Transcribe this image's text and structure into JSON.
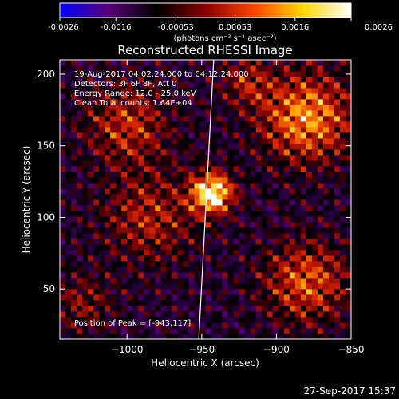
{
  "chart_data": {
    "type": "heatmap",
    "title": "Reconstructed RHESSI Image",
    "colorbar": {
      "ticks": [
        "-0.0026",
        "-0.0016",
        "-0.00053",
        "0.00053",
        "0.0016",
        "0.0026"
      ],
      "range": [
        -0.0026,
        0.0026
      ],
      "unit_label": "(photons cm⁻² s⁻¹ asec⁻²)",
      "colors": [
        "#0000ff",
        "#5a007a",
        "#000000",
        "#8b0000",
        "#ff4500",
        "#ffd700",
        "#ffffff"
      ]
    },
    "xlabel": "Heliocentric X (arcsec)",
    "ylabel": "Heliocentric Y (arcsec)",
    "xlim": [
      -1045,
      -850
    ],
    "ylim": [
      15,
      210
    ],
    "xticks": [
      -1000,
      -950,
      -900,
      -850
    ],
    "yticks": [
      50,
      100,
      150,
      200
    ],
    "annotations": [
      "19-Aug-2017 04:02:24.000 to 04:12:24.000",
      "Detectors: 3F 6F 8F, Att 0",
      "Energy Range: 12.0 - 25.0 keV",
      "Clean    Total counts: 1.64E+04"
    ],
    "peak_label": "Position of Peak = [-943,117]",
    "peak": [
      -943,
      117
    ],
    "limb_line": [
      [
        -942,
        210
      ],
      [
        -952,
        15
      ]
    ],
    "sources": [
      {
        "x": -943,
        "y": 117,
        "amp": 1.0,
        "sigma": 10
      },
      {
        "x": -880,
        "y": 170,
        "amp": 0.7,
        "sigma": 22
      },
      {
        "x": -880,
        "y": 55,
        "amp": 0.55,
        "sigma": 20
      },
      {
        "x": -1000,
        "y": 165,
        "amp": 0.45,
        "sigma": 20
      },
      {
        "x": -985,
        "y": 100,
        "amp": 0.4,
        "sigma": 22
      },
      {
        "x": -920,
        "y": 195,
        "amp": 0.35,
        "sigma": 12
      },
      {
        "x": -1030,
        "y": 40,
        "amp": 0.3,
        "sigma": 14
      }
    ]
  },
  "footer": {
    "timestamp": "27-Sep-2017 15:37"
  }
}
